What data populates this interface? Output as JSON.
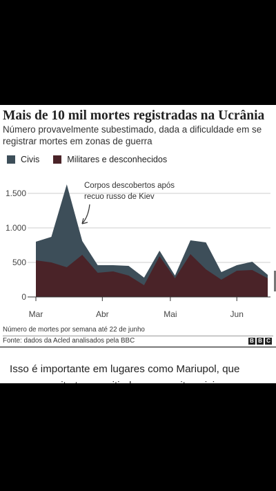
{
  "article": {
    "title": "Mais de 10 mil mortes registradas na Ucrânia",
    "subtitle": "Número provavelmente subestimado, dada a dificuldade em se registrar mortes em zonas de guerra",
    "note": "Número de mortes por semana até 22 de junho",
    "source": "Fonte: dados da Acled analisados pela BBC",
    "brand": [
      "B",
      "B",
      "C"
    ],
    "body": "Isso é importante em lugares como Mariupol, que passou muito tempo sitiada, com muitos civis"
  },
  "colors": {
    "civis": "#3d4e59",
    "militares": "#4a2328",
    "grid": "#cccccc"
  },
  "chart_data": {
    "type": "area",
    "stacked": true,
    "legend_placement": "top-left",
    "grid": true,
    "ylim": [
      0,
      1700
    ],
    "yticks": [
      0,
      500,
      1000,
      1500
    ],
    "ytick_labels": [
      "0",
      "500",
      "1.000",
      "1.500"
    ],
    "xtick_labels": [
      "Mar",
      "Abr",
      "Mai",
      "Jun"
    ],
    "xtick_weeks": [
      0,
      4.3,
      8.7,
      13.0
    ],
    "weeks": [
      0,
      1,
      2,
      3,
      4,
      5,
      6,
      7,
      8,
      9,
      10,
      11,
      12,
      13,
      14,
      15
    ],
    "series": [
      {
        "name": "Militares e desconhecidos",
        "values": [
          530,
          500,
          430,
          610,
          350,
          370,
          310,
          170,
          590,
          270,
          620,
          400,
          250,
          380,
          390,
          270
        ]
      },
      {
        "name": "Civis",
        "values": [
          270,
          370,
          1200,
          200,
          110,
          90,
          140,
          110,
          80,
          40,
          200,
          390,
          110,
          80,
          120,
          50
        ]
      }
    ],
    "annotation": {
      "text_line1": "Corpos descobertos após",
      "text_line2": "recuo russo de Kiev",
      "week": 2.9
    }
  }
}
